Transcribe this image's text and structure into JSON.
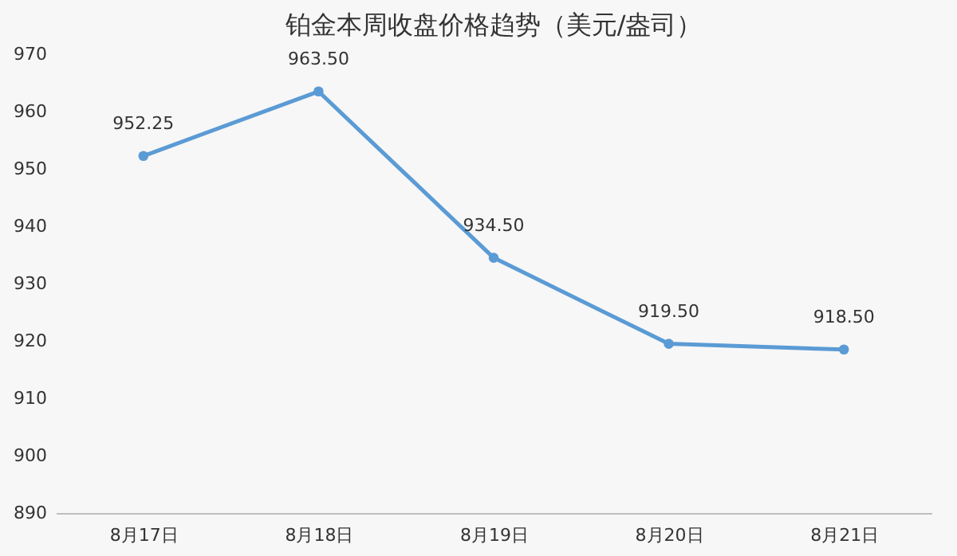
{
  "chart_data": {
    "type": "line",
    "title": "铂金本周收盘价格趋势（美元/盎司）",
    "categories": [
      "8月17日",
      "8月18日",
      "8月19日",
      "8月20日",
      "8月21日"
    ],
    "series": [
      {
        "color": "#5b9bd5",
        "values": [
          952.25,
          963.5,
          934.5,
          919.5,
          918.5
        ]
      }
    ],
    "value_labels": [
      "952.25",
      "963.50",
      "934.50",
      "919.50",
      "918.50"
    ],
    "ylim": [
      890,
      970
    ],
    "yticks": [
      890,
      900,
      910,
      920,
      930,
      940,
      950,
      960,
      970
    ],
    "grid": false,
    "legend": false,
    "marker": "circle",
    "line_style": "solid"
  }
}
